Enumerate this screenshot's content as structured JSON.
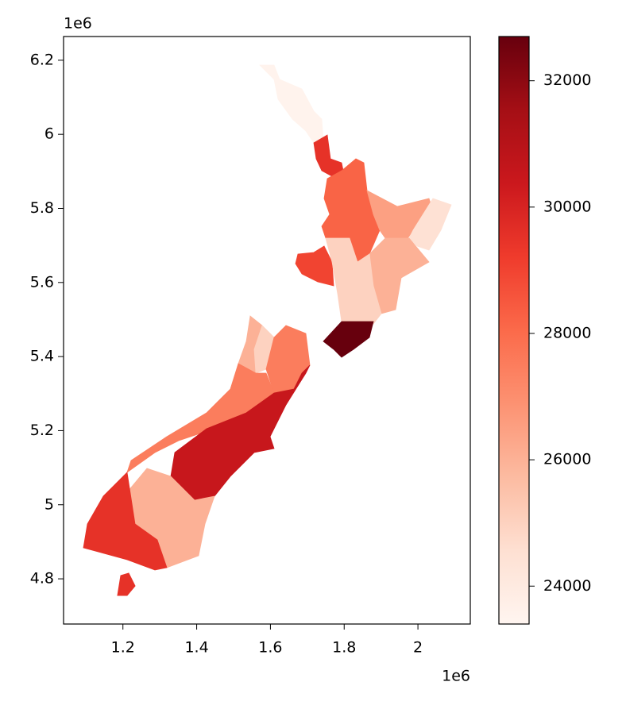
{
  "chart_data": {
    "type": "choropleth",
    "values": [
      23500,
      29500,
      28200,
      26500,
      24500,
      26000,
      29000,
      25000,
      32700,
      26000,
      25000,
      27500,
      27500,
      30500,
      26000,
      29500
    ],
    "xlim": [
      1.039,
      2.142
    ],
    "xticks": [
      1.2,
      1.4,
      1.6,
      1.8,
      2.0
    ],
    "x_offset_label": "1e6",
    "ylim": [
      4.678,
      6.264
    ],
    "yticks": [
      4.8,
      5.0,
      5.2,
      5.4,
      5.6,
      5.8,
      6.0,
      6.2
    ],
    "y_offset_label": "1e6",
    "clim": [
      23400,
      32700
    ],
    "cticks": [
      24000,
      26000,
      28000,
      30000,
      32000
    ],
    "cmap": [
      "#fff5f0",
      "#fee0d2",
      "#fcbba1",
      "#fc9272",
      "#fb6a4a",
      "#ef3b2c",
      "#cb181d",
      "#a50f15",
      "#67000d"
    ]
  }
}
